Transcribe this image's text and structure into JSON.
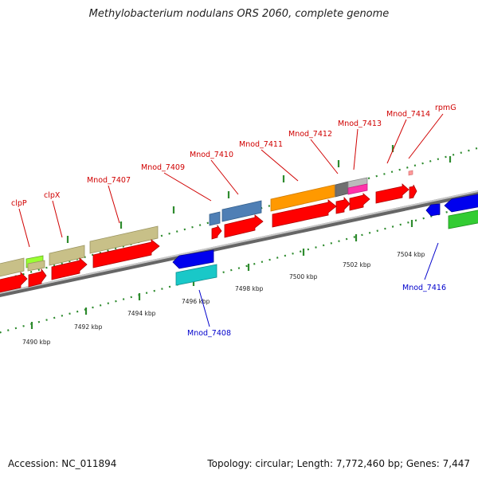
{
  "title": "Methylobacterium nodulans ORS 2060, complete genome",
  "footer": {
    "accession": "Accession: NC_011894",
    "stats": "Topology: circular; Length: 7,772,460 bp; Genes: 7,447"
  },
  "ticks": [
    {
      "label": "7490 kbp"
    },
    {
      "label": "7492 kbp"
    },
    {
      "label": "7494 kbp"
    },
    {
      "label": "7496 kbp"
    },
    {
      "label": "7498 kbp"
    },
    {
      "label": "7500 kbp"
    },
    {
      "label": "7502 kbp"
    },
    {
      "label": "7504 kbp"
    }
  ],
  "gene_labels_top": [
    {
      "text": "clpP"
    },
    {
      "text": "clpX"
    },
    {
      "text": "Mnod_7407"
    },
    {
      "text": "Mnod_7409"
    },
    {
      "text": "Mnod_7410"
    },
    {
      "text": "Mnod_7411"
    },
    {
      "text": "Mnod_7412"
    },
    {
      "text": "Mnod_7413"
    },
    {
      "text": "Mnod_7414"
    },
    {
      "text": "rpmG"
    }
  ],
  "gene_labels_bottom": [
    {
      "text": "Mnod_7408"
    },
    {
      "text": "Mnod_7416"
    }
  ],
  "colors": {
    "backbone": "#888888",
    "cds": "#ff0000",
    "dotted_track": "#2e8b2e",
    "label_forward": "#d00000",
    "label_reverse": "#0000cc",
    "olive": "#c8c088",
    "steelblue": "#4f7fb5",
    "orange": "#ff9900",
    "lime": "#99ff33",
    "blue": "#0000ee",
    "cyan": "#19c8c8",
    "green": "#33cc33",
    "magenta": "#ff33aa"
  }
}
